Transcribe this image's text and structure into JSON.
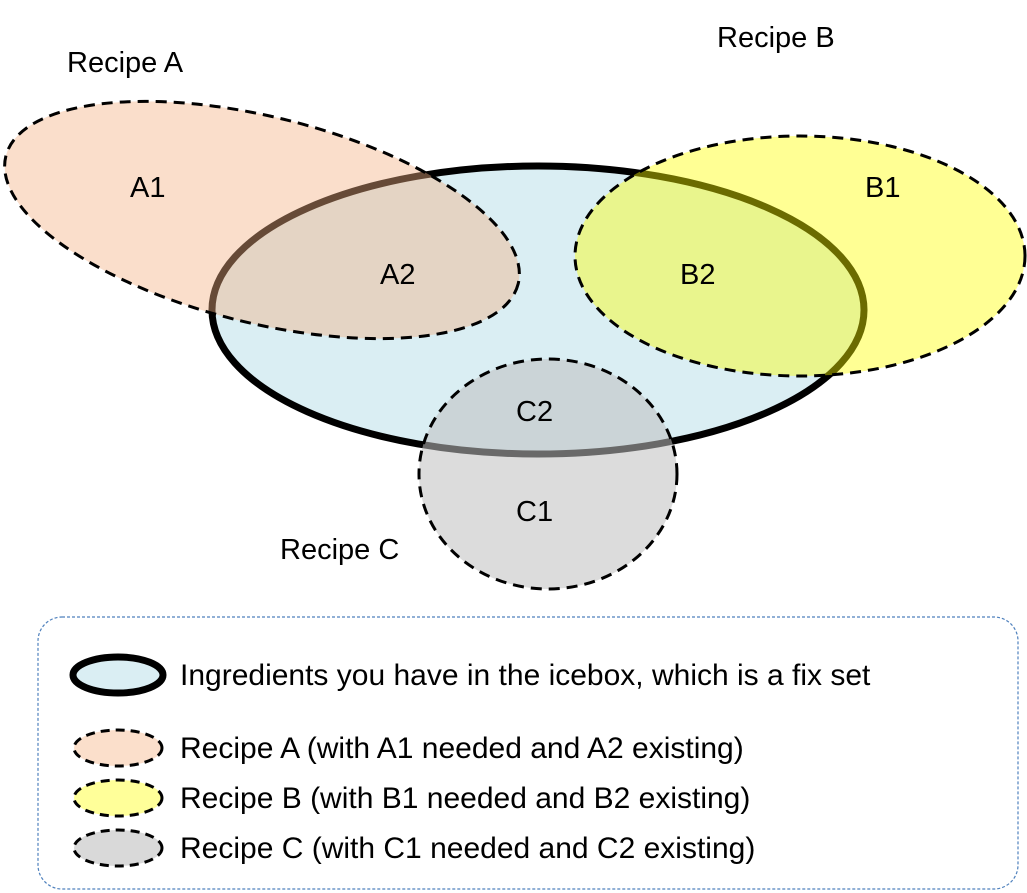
{
  "colors": {
    "icebox_fill": "#DAEEF3",
    "icebox_stroke": "#000000",
    "recipe_a_fill": "#FBDFCB",
    "recipe_b_fill": "#FFFF99",
    "recipe_c_fill": "#D9D9D9",
    "legend_border": "#4F81BD"
  },
  "labels": {
    "recipe_a": "Recipe A",
    "recipe_b": "Recipe B",
    "recipe_c": "Recipe C",
    "a1": "A1",
    "a2": "A2",
    "b1": "B1",
    "b2": "B2",
    "c1": "C1",
    "c2": "C2"
  },
  "legend": {
    "items": [
      {
        "swatch": "solid-thick-ellipse",
        "text": "Ingredients you have in the icebox, which is a fix set"
      },
      {
        "swatch": "dashed-ellipse",
        "text": "Recipe A (with A1 needed and A2 existing)"
      },
      {
        "swatch": "dashed-ellipse",
        "text": "Recipe B (with B1 needed and B2 existing)"
      },
      {
        "swatch": "dashed-ellipse",
        "text": "Recipe C (with C1 needed and C2 existing)"
      }
    ]
  }
}
